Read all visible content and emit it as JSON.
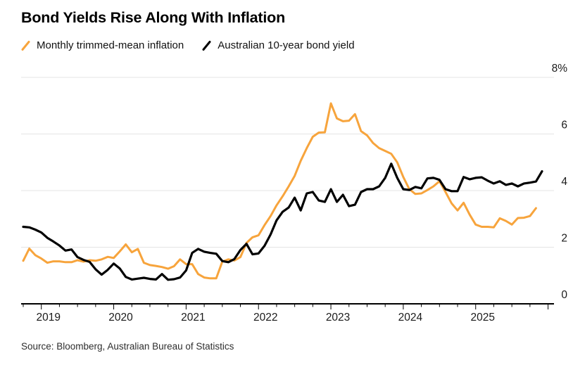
{
  "header": {
    "title": "Bond Yields Rise Along With Inflation",
    "legend": [
      {
        "label": "Monthly trimmed-mean inflation",
        "color": "#F7A43C"
      },
      {
        "label": "Australian 10-year bond yield",
        "color": "#000000"
      }
    ]
  },
  "footer": {
    "source": "Source: Bloomberg, Australian Bureau of Statistics"
  },
  "chart_data": {
    "type": "line",
    "title": "Bond Yields Rise Along With Inflation",
    "x_start": "2018-10",
    "x_frequency": "monthly",
    "x_axis": {
      "years": [
        "2019",
        "2020",
        "2021",
        "2022",
        "2023",
        "2024",
        "2025"
      ],
      "tick_interval": "quarterly"
    },
    "y_axis": {
      "unit": "percent",
      "min": 0,
      "max": 8,
      "ticks": [
        {
          "v": 8,
          "label": "8%"
        },
        {
          "v": 6,
          "label": "6"
        },
        {
          "v": 4,
          "label": "4"
        },
        {
          "v": 2,
          "label": "2"
        },
        {
          "v": 0,
          "label": "0"
        }
      ]
    },
    "grid": "horizontal",
    "legend_position": "top",
    "colors": {
      "gridline": "#e4e4e4",
      "axis": "#000000",
      "tick_label": "#1a1a1a"
    },
    "series": [
      {
        "name": "Monthly trimmed-mean inflation",
        "color": "#F7A43C",
        "stroke_width": 3,
        "values": [
          1.52,
          1.95,
          1.72,
          1.6,
          1.45,
          1.5,
          1.5,
          1.47,
          1.47,
          1.54,
          1.49,
          1.54,
          1.52,
          1.57,
          1.66,
          1.62,
          1.85,
          2.1,
          1.82,
          1.94,
          1.45,
          1.37,
          1.34,
          1.3,
          1.24,
          1.33,
          1.57,
          1.4,
          1.4,
          1.05,
          0.93,
          0.9,
          0.9,
          1.49,
          1.57,
          1.53,
          1.65,
          2.15,
          2.35,
          2.42,
          2.78,
          3.1,
          3.48,
          3.8,
          4.15,
          4.52,
          5.05,
          5.5,
          5.9,
          6.05,
          6.06,
          7.08,
          6.55,
          6.45,
          6.47,
          6.7,
          6.1,
          5.95,
          5.68,
          5.5,
          5.4,
          5.3,
          5.0,
          4.48,
          4.05,
          3.88,
          3.9,
          4.02,
          4.15,
          4.33,
          3.95,
          3.55,
          3.3,
          3.57,
          3.15,
          2.8,
          2.72,
          2.72,
          2.7,
          3.02,
          2.93,
          2.8,
          3.03,
          3.04,
          3.1,
          3.38
        ]
      },
      {
        "name": "Australian 10-year bond yield",
        "color": "#000000",
        "stroke_width": 3.2,
        "values": [
          2.72,
          2.7,
          2.62,
          2.52,
          2.33,
          2.2,
          2.06,
          1.88,
          1.92,
          1.65,
          1.55,
          1.48,
          1.22,
          1.03,
          1.2,
          1.42,
          1.25,
          0.95,
          0.86,
          0.89,
          0.92,
          0.88,
          0.86,
          1.05,
          0.85,
          0.87,
          0.93,
          1.18,
          1.8,
          1.94,
          1.84,
          1.8,
          1.77,
          1.51,
          1.47,
          1.58,
          1.9,
          2.12,
          1.75,
          1.78,
          2.05,
          2.45,
          2.95,
          3.25,
          3.4,
          3.75,
          3.3,
          3.9,
          3.95,
          3.65,
          3.6,
          4.05,
          3.6,
          3.85,
          3.45,
          3.5,
          3.95,
          4.05,
          4.05,
          4.15,
          4.45,
          4.95,
          4.45,
          4.05,
          4.02,
          4.13,
          4.08,
          4.43,
          4.45,
          4.38,
          4.05,
          3.98,
          3.98,
          4.48,
          4.4,
          4.45,
          4.47,
          4.35,
          4.25,
          4.33,
          4.2,
          4.25,
          4.15,
          4.25,
          4.28,
          4.32,
          4.68
        ]
      }
    ]
  }
}
